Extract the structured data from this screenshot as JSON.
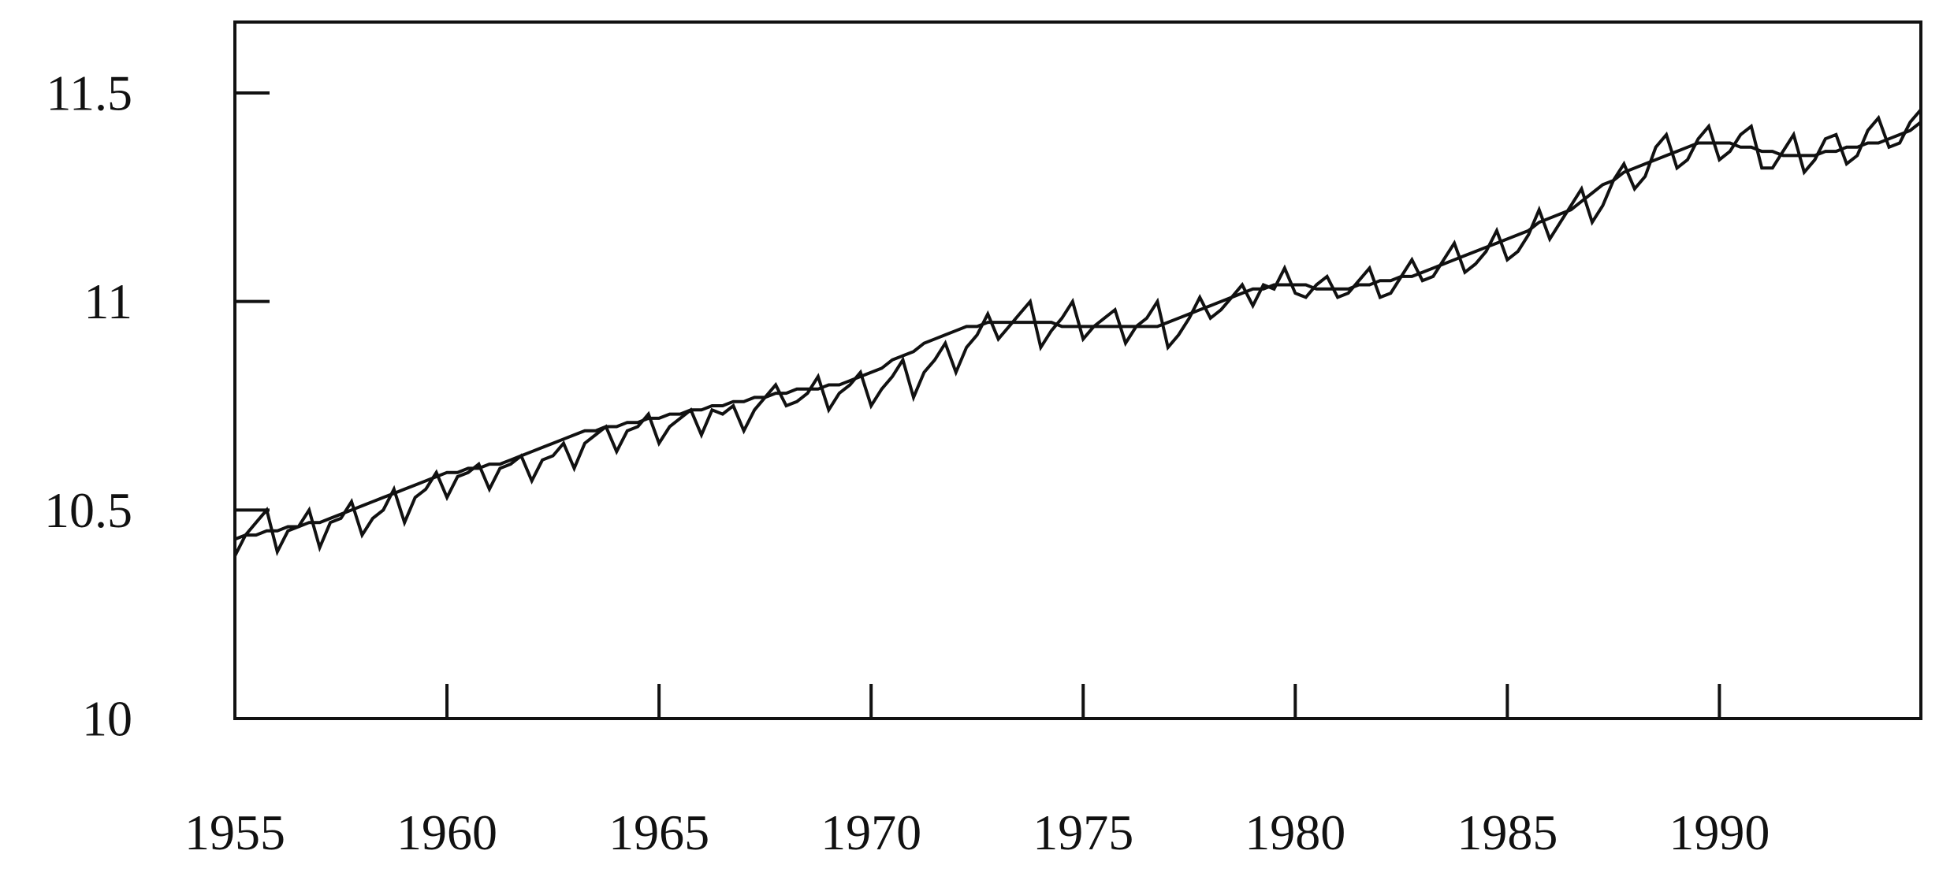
{
  "chart_data": {
    "type": "line",
    "title": "",
    "xlabel": "",
    "ylabel": "",
    "xlim": [
      1955,
      1994.75
    ],
    "ylim": [
      10,
      11.67
    ],
    "x_ticks": [
      1955,
      1960,
      1965,
      1970,
      1975,
      1980,
      1985,
      1990
    ],
    "x_tick_labels": [
      "1955",
      "1960",
      "1965",
      "1970",
      "1975",
      "1980",
      "1985",
      "1990"
    ],
    "y_ticks": [
      10,
      10.5,
      11,
      11.5
    ],
    "y_tick_labels": [
      "10",
      "10.5",
      "11",
      "11.5"
    ],
    "grid": false,
    "legend": "none",
    "line_color": "#111111",
    "x_start": 1955.0,
    "x_step": 0.25,
    "series": [
      {
        "values": [
          10.39,
          10.44,
          10.47,
          10.5,
          10.4,
          10.45,
          10.46,
          10.5,
          10.41,
          10.47,
          10.48,
          10.52,
          10.44,
          10.48,
          10.5,
          10.55,
          10.47,
          10.53,
          10.55,
          10.59,
          10.53,
          10.58,
          10.59,
          10.61,
          10.55,
          10.6,
          10.61,
          10.63,
          10.57,
          10.62,
          10.63,
          10.66,
          10.6,
          10.66,
          10.68,
          10.7,
          10.64,
          10.69,
          10.7,
          10.73,
          10.66,
          10.7,
          10.72,
          10.74,
          10.68,
          10.74,
          10.73,
          10.75,
          10.69,
          10.74,
          10.77,
          10.8,
          10.75,
          10.76,
          10.78,
          10.82,
          10.74,
          10.78,
          10.8,
          10.83,
          10.75,
          10.79,
          10.82,
          10.86,
          10.77,
          10.83,
          10.86,
          10.9,
          10.83,
          10.89,
          10.92,
          10.97,
          10.91,
          10.94,
          10.97,
          11.0,
          10.89,
          10.93,
          10.96,
          11.0,
          10.91,
          10.94,
          10.96,
          10.98,
          10.9,
          10.94,
          10.96,
          11.0,
          10.89,
          10.92,
          10.96,
          11.01,
          10.96,
          10.98,
          11.01,
          11.04,
          10.99,
          11.04,
          11.03,
          11.08,
          11.02,
          11.01,
          11.04,
          11.06,
          11.01,
          11.02,
          11.05,
          11.08,
          11.01,
          11.02,
          11.06,
          11.1,
          11.05,
          11.06,
          11.1,
          11.14,
          11.07,
          11.09,
          11.12,
          11.17,
          11.1,
          11.12,
          11.16,
          11.22,
          11.15,
          11.19,
          11.23,
          11.27,
          11.19,
          11.23,
          11.29,
          11.33,
          11.27,
          11.3,
          11.37,
          11.4,
          11.32,
          11.34,
          11.39,
          11.42,
          11.34,
          11.36,
          11.4,
          11.42,
          11.32,
          11.32,
          11.36,
          11.4,
          11.31,
          11.34,
          11.39,
          11.4,
          11.33,
          11.35,
          11.41,
          11.44,
          11.37,
          11.38,
          11.43,
          11.46
        ]
      },
      {
        "values": [
          10.43,
          10.44,
          10.44,
          10.45,
          10.45,
          10.46,
          10.46,
          10.47,
          10.47,
          10.48,
          10.49,
          10.5,
          10.51,
          10.52,
          10.53,
          10.54,
          10.55,
          10.56,
          10.57,
          10.58,
          10.59,
          10.59,
          10.6,
          10.6,
          10.61,
          10.61,
          10.62,
          10.63,
          10.64,
          10.65,
          10.66,
          10.67,
          10.68,
          10.69,
          10.69,
          10.7,
          10.7,
          10.71,
          10.71,
          10.72,
          10.72,
          10.73,
          10.73,
          10.74,
          10.74,
          10.75,
          10.75,
          10.76,
          10.76,
          10.77,
          10.77,
          10.78,
          10.78,
          10.79,
          10.79,
          10.79,
          10.8,
          10.8,
          10.81,
          10.82,
          10.83,
          10.84,
          10.86,
          10.87,
          10.88,
          10.9,
          10.91,
          10.92,
          10.93,
          10.94,
          10.94,
          10.95,
          10.95,
          10.95,
          10.95,
          10.95,
          10.95,
          10.95,
          10.94,
          10.94,
          10.94,
          10.94,
          10.94,
          10.94,
          10.94,
          10.94,
          10.94,
          10.94,
          10.95,
          10.96,
          10.97,
          10.98,
          10.99,
          11.0,
          11.01,
          11.02,
          11.03,
          11.03,
          11.04,
          11.04,
          11.04,
          11.04,
          11.03,
          11.03,
          11.03,
          11.03,
          11.04,
          11.04,
          11.05,
          11.05,
          11.06,
          11.06,
          11.07,
          11.08,
          11.09,
          11.1,
          11.11,
          11.12,
          11.13,
          11.14,
          11.15,
          11.16,
          11.17,
          11.19,
          11.2,
          11.21,
          11.22,
          11.24,
          11.26,
          11.28,
          11.29,
          11.31,
          11.32,
          11.33,
          11.34,
          11.35,
          11.36,
          11.37,
          11.38,
          11.38,
          11.38,
          11.38,
          11.37,
          11.37,
          11.36,
          11.36,
          11.35,
          11.35,
          11.35,
          11.35,
          11.36,
          11.36,
          11.37,
          11.37,
          11.38,
          11.38,
          11.39,
          11.4,
          11.41,
          11.43
        ]
      }
    ]
  }
}
